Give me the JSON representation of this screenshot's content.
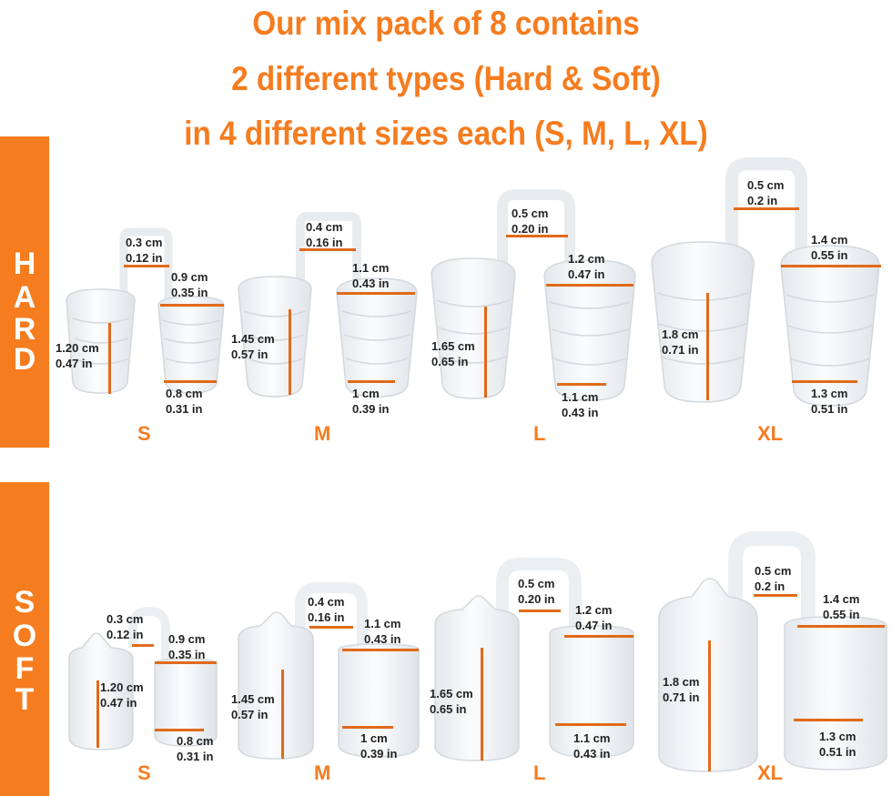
{
  "title": {
    "line1": "Our mix pack of 8 contains",
    "line2": "2 different types (Hard & Soft)",
    "line3": "in 4 different sizes each (S, M, L, XL)"
  },
  "sections": {
    "hard": {
      "letters": [
        "H",
        "A",
        "R",
        "D"
      ]
    },
    "soft": {
      "letters": [
        "S",
        "O",
        "F",
        "T"
      ]
    }
  },
  "colors": {
    "accent": "#f57c1f",
    "measure_line": "#e06a1a",
    "text": "#222222"
  },
  "hard": [
    {
      "size": "S",
      "bridge": [
        "0.3 cm",
        "0.12 in"
      ],
      "width": [
        "0.9 cm",
        "0.35 in"
      ],
      "height": [
        "1.20 cm",
        "0.47 in"
      ],
      "base": [
        "0.8 cm",
        "0.31 in"
      ]
    },
    {
      "size": "M",
      "bridge": [
        "0.4 cm",
        "0.16 in"
      ],
      "width": [
        "1.1 cm",
        "0.43 in"
      ],
      "height": [
        "1.45 cm",
        "0.57 in"
      ],
      "base": [
        "1 cm",
        "0.39 in"
      ]
    },
    {
      "size": "L",
      "bridge": [
        "0.5 cm",
        "0.20 in"
      ],
      "width": [
        "1.2 cm",
        "0.47 in"
      ],
      "height": [
        "1.65 cm",
        "0.65 in"
      ],
      "base": [
        "1.1 cm",
        "0.43 in"
      ]
    },
    {
      "size": "XL",
      "bridge": [
        "0.5 cm",
        "0.2 in"
      ],
      "width": [
        "1.4 cm",
        "0.55 in"
      ],
      "height": [
        "1.8 cm",
        "0.71 in"
      ],
      "base": [
        "1.3 cm",
        "0.51 in"
      ]
    }
  ],
  "soft": [
    {
      "size": "S",
      "bridge": [
        "0.3 cm",
        "0.12 in"
      ],
      "width": [
        "0.9 cm",
        "0.35 in"
      ],
      "height": [
        "1.20 cm",
        "0.47 in"
      ],
      "base": [
        "0.8 cm",
        "0.31 in"
      ]
    },
    {
      "size": "M",
      "bridge": [
        "0.4 cm",
        "0.16 in"
      ],
      "width": [
        "1.1 cm",
        "0.43 in"
      ],
      "height": [
        "1.45 cm",
        "0.57 in"
      ],
      "base": [
        "1 cm",
        "0.39 in"
      ]
    },
    {
      "size": "L",
      "bridge": [
        "0.5 cm",
        "0.20 in"
      ],
      "width": [
        "1.2 cm",
        "0.47 in"
      ],
      "height": [
        "1.65 cm",
        "0.65 in"
      ],
      "base": [
        "1.1 cm",
        "0.43 in"
      ]
    },
    {
      "size": "XL",
      "bridge": [
        "0.5 cm",
        "0.2 in"
      ],
      "width": [
        "1.4 cm",
        "0.55 in"
      ],
      "height": [
        "1.8 cm",
        "0.71 in"
      ],
      "base": [
        "1.3 cm",
        "0.51 in"
      ]
    }
  ]
}
